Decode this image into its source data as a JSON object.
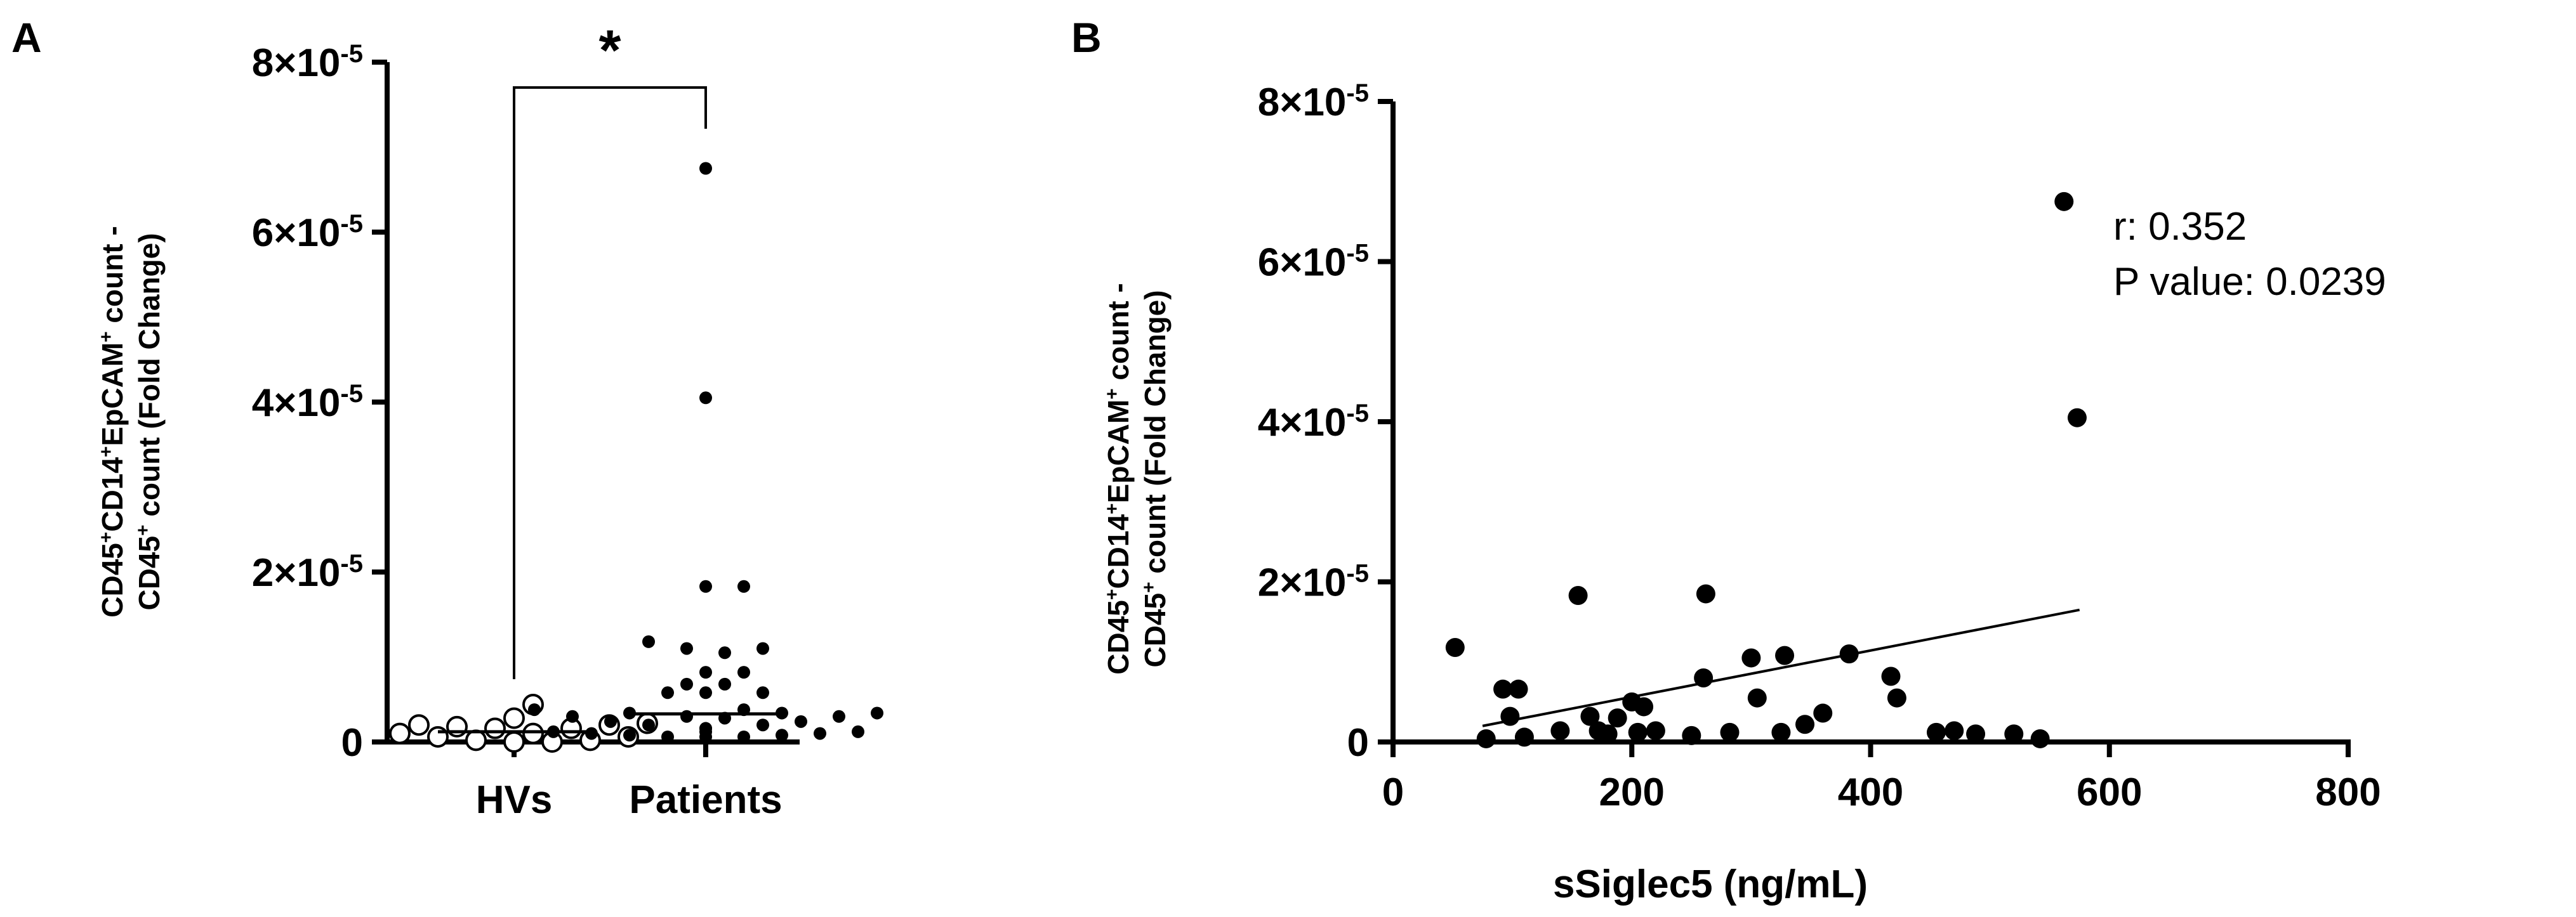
{
  "chart_data": [
    {
      "type": "scatter",
      "subtype": "dot-plot",
      "panel_label": "A",
      "categories": [
        "HVs",
        "Patients"
      ],
      "ylabel": "CD45+CD14+EpCAM+ count - CD45+ count (Fold Change)",
      "ylim": [
        0,
        8e-05
      ],
      "yticks": [
        "0",
        "2×10",
        "4×10",
        "6×10",
        "8×10"
      ],
      "ytick_exp": "-5",
      "significance": "*",
      "series": [
        {
          "name": "HVs",
          "marker": "open-circle",
          "values": [
            2.8e-06,
            2e-06,
            1.8e-06,
            1.6e-06,
            1e-06,
            6e-07,
            2e-07,
            0.0,
            0.0,
            2e-07,
            6e-07,
            1e-06,
            1.6e-06,
            2e-06,
            2.2e-06,
            4.4e-06
          ],
          "median": 1.2e-06
        },
        {
          "name": "Patients",
          "marker": "filled-circle",
          "values": [
            6.75e-05,
            4.05e-05,
            1.83e-05,
            1.83e-05,
            1.18e-05,
            1.1e-05,
            1.1e-05,
            1.05e-05,
            8.2e-06,
            8.2e-06,
            6.8e-06,
            6.8e-06,
            5.8e-06,
            5.8e-06,
            5.8e-06,
            3.8e-06,
            3.8e-06,
            3.4e-06,
            3.4e-06,
            3.4e-06,
            3e-06,
            3e-06,
            3e-06,
            2.8e-06,
            2.4e-06,
            2.4e-06,
            2e-06,
            2e-06,
            1.6e-06,
            1.6e-06,
            1.2e-06,
            1.2e-06,
            1.2e-06,
            1e-06,
            1e-06,
            8e-07,
            8e-07,
            6e-07,
            6e-07,
            6e-07
          ],
          "median": 3.3e-06
        }
      ]
    },
    {
      "type": "scatter",
      "panel_label": "B",
      "xlabel": "sSiglec5 (ng/mL)",
      "ylabel": "CD45+CD14+EpCAM+ count - CD45+ count (Fold Change)",
      "xlim": [
        0,
        800
      ],
      "ylim": [
        0,
        8e-05
      ],
      "xticks": [
        "0",
        "200",
        "400",
        "600",
        "800"
      ],
      "yticks": [
        "0",
        "2×10",
        "4×10",
        "6×10",
        "8×10"
      ],
      "ytick_exp": "-5",
      "annotation": [
        "r: 0.352",
        "P value: 0.0239"
      ],
      "fit_line": {
        "x": [
          75,
          575
        ],
        "y": [
          2e-06,
          1.65e-05
        ]
      },
      "points": [
        [
          562,
          6.75e-05
        ],
        [
          573,
          4.05e-05
        ],
        [
          155,
          1.83e-05
        ],
        [
          262,
          1.85e-05
        ],
        [
          52,
          1.18e-05
        ],
        [
          300,
          1.05e-05
        ],
        [
          328,
          1.08e-05
        ],
        [
          382,
          1.1e-05
        ],
        [
          92,
          6.6e-06
        ],
        [
          105,
          6.6e-06
        ],
        [
          260,
          8e-06
        ],
        [
          417,
          8.2e-06
        ],
        [
          200,
          5e-06
        ],
        [
          210,
          4.4e-06
        ],
        [
          305,
          5.5e-06
        ],
        [
          422,
          5.5e-06
        ],
        [
          98,
          3.2e-06
        ],
        [
          165,
          3.2e-06
        ],
        [
          188,
          3e-06
        ],
        [
          360,
          3.6e-06
        ],
        [
          345,
          2.2e-06
        ],
        [
          140,
          1.4e-06
        ],
        [
          172,
          1.4e-06
        ],
        [
          180,
          1e-06
        ],
        [
          205,
          1.2e-06
        ],
        [
          220,
          1.4e-06
        ],
        [
          282,
          1.2e-06
        ],
        [
          325,
          1.2e-06
        ],
        [
          455,
          1.2e-06
        ],
        [
          470,
          1.4e-06
        ],
        [
          488,
          1e-06
        ],
        [
          520,
          1e-06
        ],
        [
          542,
          4e-07
        ],
        [
          78,
          4e-07
        ],
        [
          110,
          6e-07
        ],
        [
          250,
          8e-07
        ]
      ]
    }
  ]
}
